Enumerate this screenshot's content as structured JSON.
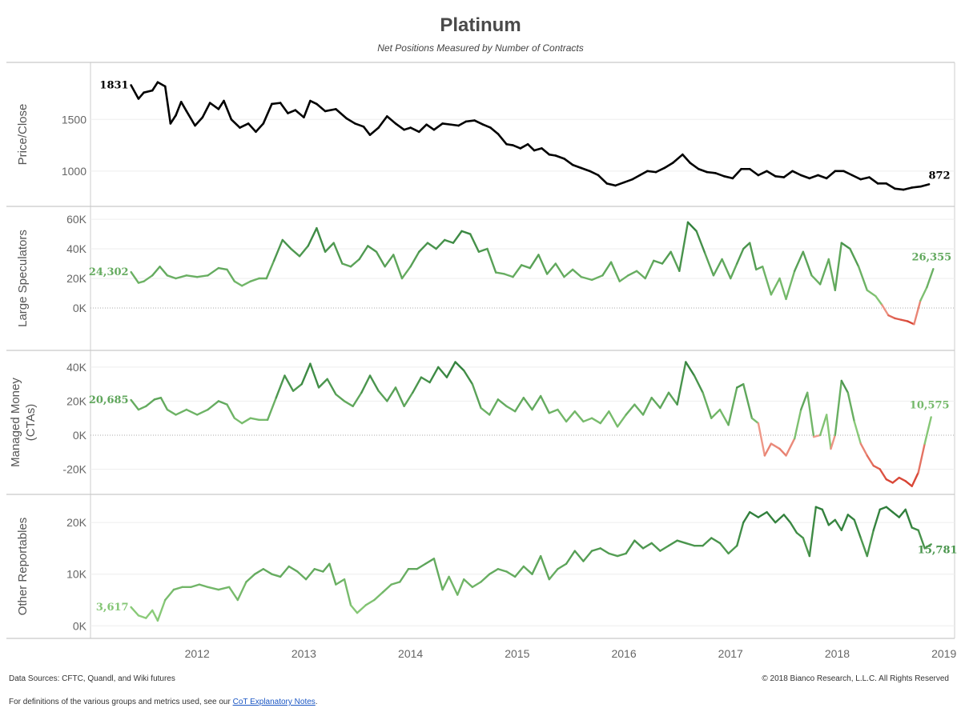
{
  "header": {
    "title": "Platinum",
    "subtitle": "Net Positions Measured by Number of Contracts"
  },
  "footer": {
    "sources": "Data Sources: CFTC, Quandl, and Wiki futures",
    "copyright": "© 2018 Bianco Research, L.L.C. All Rights Reserved",
    "definitions_prefix": "For definitions of the various groups and metrics used, see our ",
    "definitions_link": "CoT Explanatory Notes",
    "definitions_suffix": "."
  },
  "colors": {
    "price": "#000000",
    "positive_dark": "#2e7d3a",
    "positive_light": "#8ccc7a",
    "negative_light": "#f0a090",
    "negative_dark": "#d63c2c"
  },
  "chart_data": {
    "type": "line",
    "x_axis": {
      "range": [
        2011.0,
        2019.1
      ],
      "ticks": [
        2012,
        2013,
        2014,
        2015,
        2016,
        2017,
        2018,
        2019
      ],
      "tick_labels": [
        "2012",
        "2013",
        "2014",
        "2015",
        "2016",
        "2017",
        "2018",
        "2019"
      ]
    },
    "panels": [
      {
        "ylabel": [
          "Price/Close"
        ],
        "ylim": [
          720,
          1990
        ],
        "ticks": [
          1000,
          1500
        ],
        "tick_labels": [
          "1000",
          "1500"
        ],
        "zero_line": false,
        "color_mode": "black",
        "start_label": "1831",
        "end_label": "872",
        "x": [
          2011.38,
          2011.45,
          2011.5,
          2011.58,
          2011.63,
          2011.7,
          2011.75,
          2011.8,
          2011.85,
          2011.9,
          2011.98,
          2012.05,
          2012.12,
          2012.2,
          2012.25,
          2012.32,
          2012.4,
          2012.48,
          2012.55,
          2012.62,
          2012.7,
          2012.78,
          2012.85,
          2012.92,
          2013.0,
          2013.06,
          2013.12,
          2013.2,
          2013.3,
          2013.4,
          2013.48,
          2013.56,
          2013.62,
          2013.7,
          2013.78,
          2013.86,
          2013.94,
          2014.0,
          2014.08,
          2014.15,
          2014.22,
          2014.3,
          2014.38,
          2014.45,
          2014.52,
          2014.6,
          2014.68,
          2014.75,
          2014.82,
          2014.9,
          2014.96,
          2015.03,
          2015.1,
          2015.16,
          2015.23,
          2015.3,
          2015.36,
          2015.44,
          2015.52,
          2015.6,
          2015.68,
          2015.76,
          2015.84,
          2015.92,
          2016.0,
          2016.08,
          2016.15,
          2016.22,
          2016.3,
          2016.38,
          2016.46,
          2016.55,
          2016.62,
          2016.7,
          2016.78,
          2016.86,
          2016.94,
          2017.02,
          2017.1,
          2017.18,
          2017.26,
          2017.34,
          2017.42,
          2017.5,
          2017.58,
          2017.66,
          2017.74,
          2017.82,
          2017.9,
          2017.98,
          2018.06,
          2018.14,
          2018.22,
          2018.3,
          2018.38,
          2018.46,
          2018.54,
          2018.62,
          2018.7,
          2018.78,
          2018.86
        ],
        "values": [
          1831,
          1700,
          1760,
          1780,
          1860,
          1820,
          1460,
          1540,
          1670,
          1580,
          1440,
          1520,
          1660,
          1600,
          1680,
          1500,
          1420,
          1460,
          1380,
          1460,
          1650,
          1660,
          1560,
          1590,
          1520,
          1680,
          1650,
          1580,
          1600,
          1510,
          1460,
          1430,
          1350,
          1420,
          1530,
          1460,
          1400,
          1420,
          1380,
          1450,
          1400,
          1460,
          1450,
          1440,
          1480,
          1490,
          1450,
          1420,
          1360,
          1260,
          1250,
          1220,
          1260,
          1200,
          1220,
          1160,
          1150,
          1120,
          1060,
          1030,
          1000,
          960,
          880,
          860,
          890,
          920,
          960,
          1000,
          990,
          1030,
          1080,
          1160,
          1080,
          1020,
          990,
          980,
          950,
          930,
          1020,
          1020,
          960,
          1000,
          950,
          940,
          1000,
          960,
          930,
          960,
          930,
          1000,
          1000,
          960,
          920,
          940,
          880,
          880,
          830,
          820,
          840,
          850,
          872
        ]
      },
      {
        "ylabel": [
          "Large Speculators"
        ],
        "ylim": [
          -26000,
          66000
        ],
        "ticks": [
          0,
          20000,
          40000,
          60000
        ],
        "tick_labels": [
          "0K",
          "20K",
          "40K",
          "60K"
        ],
        "zero_line": true,
        "color_mode": "signed",
        "start_label": "24,302",
        "end_label": "26,355",
        "x": [
          2011.38,
          2011.45,
          2011.5,
          2011.58,
          2011.65,
          2011.72,
          2011.8,
          2011.9,
          2012.0,
          2012.1,
          2012.2,
          2012.28,
          2012.35,
          2012.42,
          2012.5,
          2012.58,
          2012.65,
          2012.72,
          2012.8,
          2012.88,
          2012.96,
          2013.04,
          2013.12,
          2013.2,
          2013.28,
          2013.36,
          2013.44,
          2013.52,
          2013.6,
          2013.68,
          2013.76,
          2013.84,
          2013.92,
          2014.0,
          2014.08,
          2014.16,
          2014.24,
          2014.32,
          2014.4,
          2014.48,
          2014.56,
          2014.64,
          2014.72,
          2014.8,
          2014.88,
          2014.96,
          2015.04,
          2015.12,
          2015.2,
          2015.28,
          2015.36,
          2015.44,
          2015.52,
          2015.6,
          2015.7,
          2015.8,
          2015.88,
          2015.96,
          2016.04,
          2016.12,
          2016.2,
          2016.28,
          2016.36,
          2016.44,
          2016.52,
          2016.6,
          2016.68,
          2016.76,
          2016.84,
          2016.92,
          2017.0,
          2017.06,
          2017.12,
          2017.18,
          2017.24,
          2017.3,
          2017.38,
          2017.46,
          2017.52,
          2017.6,
          2017.68,
          2017.76,
          2017.84,
          2017.92,
          2017.98,
          2018.04,
          2018.12,
          2018.2,
          2018.28,
          2018.36,
          2018.42,
          2018.48,
          2018.54,
          2018.6,
          2018.66,
          2018.72,
          2018.78,
          2018.84,
          2018.9
        ],
        "values": [
          24302,
          17000,
          18000,
          22000,
          28000,
          22000,
          20000,
          22000,
          21000,
          22000,
          27000,
          26000,
          18000,
          15000,
          18000,
          20000,
          20000,
          32000,
          46000,
          40000,
          35000,
          42000,
          54000,
          38000,
          44000,
          30000,
          28000,
          33000,
          42000,
          38000,
          28000,
          36000,
          20000,
          28000,
          38000,
          44000,
          40000,
          46000,
          44000,
          52000,
          50000,
          38000,
          40000,
          24000,
          23000,
          21000,
          29000,
          27000,
          36000,
          23000,
          30000,
          21000,
          26000,
          21000,
          19000,
          22000,
          31000,
          18000,
          22000,
          25000,
          20000,
          32000,
          30000,
          38000,
          25000,
          58000,
          52000,
          37000,
          22000,
          33000,
          20000,
          30000,
          40000,
          44000,
          26000,
          28000,
          9000,
          20000,
          6000,
          25000,
          38000,
          22000,
          16000,
          33000,
          12000,
          44000,
          40000,
          28000,
          12000,
          8000,
          2000,
          -5000,
          -7000,
          -8000,
          -9000,
          -11000,
          5000,
          14000,
          26355
        ]
      },
      {
        "ylabel": [
          "Managed Money",
          "(CTAs)"
        ],
        "ylim": [
          -32000,
          47000
        ],
        "ticks": [
          -20000,
          0,
          20000,
          40000
        ],
        "tick_labels": [
          "-20K",
          "0K",
          "20K",
          "40K"
        ],
        "zero_line": true,
        "color_mode": "signed",
        "start_label": "20,685",
        "end_label": "10,575",
        "x": [
          2011.38,
          2011.45,
          2011.52,
          2011.6,
          2011.66,
          2011.72,
          2011.8,
          2011.9,
          2012.0,
          2012.1,
          2012.2,
          2012.28,
          2012.35,
          2012.42,
          2012.5,
          2012.58,
          2012.66,
          2012.74,
          2012.82,
          2012.9,
          2012.98,
          2013.06,
          2013.14,
          2013.22,
          2013.3,
          2013.38,
          2013.46,
          2013.54,
          2013.62,
          2013.7,
          2013.78,
          2013.86,
          2013.94,
          2014.02,
          2014.1,
          2014.18,
          2014.26,
          2014.34,
          2014.42,
          2014.5,
          2014.58,
          2014.66,
          2014.74,
          2014.82,
          2014.9,
          2014.98,
          2015.06,
          2015.14,
          2015.22,
          2015.3,
          2015.38,
          2015.46,
          2015.54,
          2015.62,
          2015.7,
          2015.78,
          2015.86,
          2015.94,
          2016.02,
          2016.1,
          2016.18,
          2016.26,
          2016.34,
          2016.42,
          2016.5,
          2016.58,
          2016.66,
          2016.74,
          2016.82,
          2016.9,
          2016.98,
          2017.06,
          2017.12,
          2017.2,
          2017.26,
          2017.32,
          2017.38,
          2017.46,
          2017.52,
          2017.6,
          2017.66,
          2017.72,
          2017.78,
          2017.84,
          2017.9,
          2017.94,
          2017.98,
          2018.04,
          2018.1,
          2018.16,
          2018.22,
          2018.28,
          2018.34,
          2018.4,
          2018.46,
          2018.52,
          2018.58,
          2018.64,
          2018.7,
          2018.76,
          2018.82,
          2018.88
        ],
        "values": [
          20685,
          15000,
          17000,
          21000,
          22000,
          15000,
          12000,
          15000,
          12000,
          15000,
          20000,
          18000,
          10000,
          7000,
          10000,
          9000,
          9000,
          22000,
          35000,
          26000,
          30000,
          42000,
          28000,
          33000,
          24000,
          20000,
          17000,
          25000,
          35000,
          26000,
          20000,
          28000,
          17000,
          25000,
          34000,
          31000,
          40000,
          34000,
          43000,
          38000,
          30000,
          16000,
          12000,
          21000,
          17000,
          14000,
          22000,
          15000,
          23000,
          13000,
          15000,
          8000,
          14000,
          8000,
          10000,
          7000,
          14000,
          5000,
          12000,
          18000,
          12000,
          22000,
          16000,
          25000,
          18000,
          43000,
          35000,
          25000,
          10000,
          15000,
          6000,
          28000,
          30000,
          10000,
          7000,
          -12000,
          -5000,
          -8000,
          -12000,
          -2000,
          15000,
          25000,
          -1000,
          0,
          12000,
          -8000,
          0,
          32000,
          25000,
          8000,
          -5000,
          -12000,
          -18000,
          -20000,
          -26000,
          -28000,
          -25000,
          -27000,
          -30000,
          -22000,
          -5000,
          10575
        ]
      },
      {
        "ylabel": [
          "Other Reportables"
        ],
        "ylim": [
          -1500,
          24500
        ],
        "ticks": [
          0,
          10000,
          20000
        ],
        "tick_labels": [
          "0K",
          "10K",
          "20K"
        ],
        "zero_line": false,
        "color_mode": "magnitude",
        "start_label": "3,617",
        "end_label": "15,781",
        "x": [
          2011.38,
          2011.45,
          2011.52,
          2011.58,
          2011.63,
          2011.7,
          2011.78,
          2011.86,
          2011.94,
          2012.02,
          2012.1,
          2012.2,
          2012.3,
          2012.38,
          2012.46,
          2012.54,
          2012.62,
          2012.7,
          2012.78,
          2012.86,
          2012.94,
          2013.02,
          2013.1,
          2013.18,
          2013.24,
          2013.3,
          2013.38,
          2013.44,
          2013.5,
          2013.58,
          2013.66,
          2013.74,
          2013.82,
          2013.9,
          2013.98,
          2014.06,
          2014.14,
          2014.22,
          2014.3,
          2014.36,
          2014.44,
          2014.5,
          2014.58,
          2014.66,
          2014.74,
          2014.82,
          2014.9,
          2014.98,
          2015.06,
          2015.14,
          2015.22,
          2015.3,
          2015.38,
          2015.46,
          2015.54,
          2015.62,
          2015.7,
          2015.78,
          2015.86,
          2015.94,
          2016.02,
          2016.1,
          2016.18,
          2016.26,
          2016.34,
          2016.42,
          2016.5,
          2016.58,
          2016.66,
          2016.74,
          2016.82,
          2016.9,
          2016.98,
          2017.06,
          2017.12,
          2017.18,
          2017.26,
          2017.34,
          2017.42,
          2017.5,
          2017.56,
          2017.62,
          2017.68,
          2017.74,
          2017.8,
          2017.86,
          2017.92,
          2017.98,
          2018.04,
          2018.1,
          2018.16,
          2018.22,
          2018.28,
          2018.34,
          2018.4,
          2018.46,
          2018.52,
          2018.58,
          2018.64,
          2018.7,
          2018.76,
          2018.82,
          2018.88
        ],
        "values": [
          3617,
          2000,
          1500,
          3000,
          1000,
          5000,
          7000,
          7500,
          7500,
          8000,
          7500,
          7000,
          7500,
          5000,
          8500,
          10000,
          11000,
          10000,
          9500,
          11500,
          10500,
          9000,
          11000,
          10500,
          12000,
          8000,
          9000,
          4000,
          2500,
          4000,
          5000,
          6500,
          8000,
          8500,
          11000,
          11000,
          12000,
          13000,
          7000,
          9500,
          6000,
          9000,
          7500,
          8500,
          10000,
          11000,
          10500,
          9500,
          11500,
          10000,
          13500,
          9000,
          11000,
          12000,
          14500,
          12500,
          14500,
          15000,
          14000,
          13500,
          14000,
          16500,
          15000,
          16000,
          14500,
          15500,
          16500,
          16000,
          15500,
          15500,
          17000,
          16000,
          14000,
          15500,
          20000,
          22000,
          21000,
          22000,
          20000,
          21500,
          20000,
          18000,
          17000,
          13500,
          23000,
          22500,
          19500,
          20500,
          18500,
          21500,
          20500,
          17000,
          13500,
          18500,
          22500,
          23000,
          22000,
          21000,
          22500,
          19000,
          18500,
          15000,
          15781
        ]
      }
    ]
  }
}
